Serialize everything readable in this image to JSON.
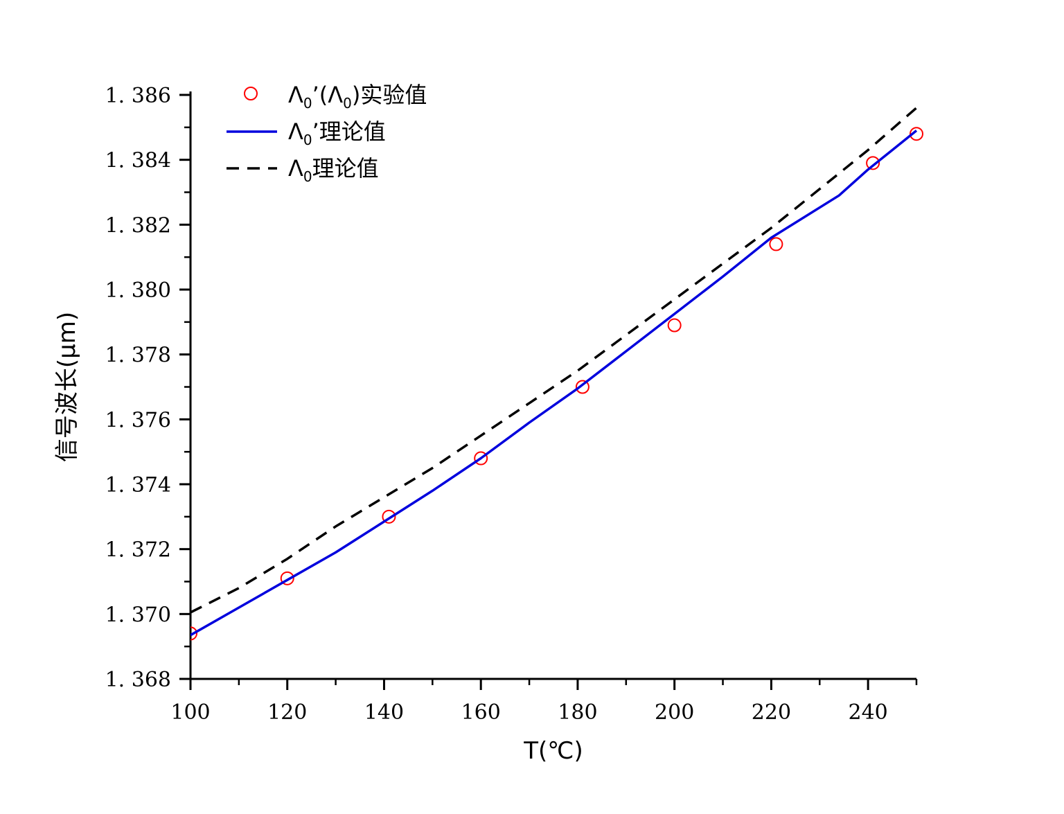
{
  "chart_data": {
    "type": "line",
    "xlabel": "T(℃)",
    "ylabel": "信号波长(μm)",
    "xlim": [
      100,
      250
    ],
    "ylim": [
      1.368,
      1.386
    ],
    "x_ticks": [
      100,
      120,
      140,
      160,
      180,
      200,
      220,
      240
    ],
    "x_tick_labels": [
      "100",
      "120",
      "140",
      "160",
      "180",
      "200",
      "220",
      "240"
    ],
    "y_ticks": [
      1.368,
      1.37,
      1.372,
      1.374,
      1.376,
      1.378,
      1.38,
      1.382,
      1.384,
      1.386
    ],
    "y_tick_labels": [
      "1. 368",
      "1. 370",
      "1. 372",
      "1. 374",
      "1. 376",
      "1. 378",
      "1. 380",
      "1. 382",
      "1. 384",
      "1. 386"
    ],
    "grid": false,
    "legend_position": "top-left",
    "series": [
      {
        "name": "Λ0’(Λ0)实验值",
        "legend": {
          "a": "Λ",
          "a_sub": "0",
          "b": "’(Λ",
          "b_sub": "0",
          "c": ")实验值"
        },
        "style": "scatter",
        "color": "#ff0000",
        "x": [
          100,
          120,
          141,
          160,
          181,
          200,
          221,
          241,
          250
        ],
        "y": [
          1.3694,
          1.3711,
          1.373,
          1.3748,
          1.377,
          1.3789,
          1.3814,
          1.3839,
          1.3848
        ]
      },
      {
        "name": "Λ0’理论值",
        "legend": {
          "a": "Λ",
          "a_sub": "0",
          "b": "’理论值"
        },
        "style": "solid",
        "color": "#0000dd",
        "x": [
          100,
          110,
          120,
          130,
          140,
          150,
          160,
          170,
          180,
          190,
          200,
          210,
          220,
          234,
          240,
          245,
          250
        ],
        "y": [
          1.36935,
          1.3702,
          1.37105,
          1.3719,
          1.37285,
          1.3738,
          1.3748,
          1.3759,
          1.37695,
          1.3781,
          1.37925,
          1.3804,
          1.3816,
          1.3829,
          1.3837,
          1.3843,
          1.3849
        ]
      },
      {
        "name": "Λ0理论值",
        "legend": {
          "a": "Λ",
          "a_sub": "0",
          "b": "理论值"
        },
        "style": "dashed",
        "color": "#000000",
        "x": [
          100,
          110,
          120,
          130,
          140,
          150,
          160,
          170,
          180,
          190,
          200,
          210,
          220,
          230,
          240,
          250
        ],
        "y": [
          1.37005,
          1.3708,
          1.3717,
          1.3727,
          1.3736,
          1.3745,
          1.3755,
          1.3765,
          1.3775,
          1.3786,
          1.3797,
          1.3808,
          1.3819,
          1.3831,
          1.3843,
          1.3856
        ]
      }
    ]
  }
}
